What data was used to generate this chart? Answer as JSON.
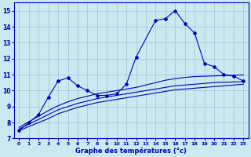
{
  "xlabel": "Graphe des températures (°c)",
  "background_color": "#cce8f0",
  "grid_color": "#99c4d8",
  "line_color": "#0000bb",
  "xlim": [
    -0.5,
    23.5
  ],
  "ylim": [
    7,
    15.5
  ],
  "xticks": [
    0,
    1,
    2,
    3,
    4,
    5,
    6,
    7,
    8,
    9,
    10,
    11,
    12,
    13,
    14,
    15,
    16,
    17,
    18,
    19,
    20,
    21,
    22,
    23
  ],
  "yticks": [
    7,
    8,
    9,
    10,
    11,
    12,
    13,
    14,
    15
  ],
  "series1_x": [
    0,
    1,
    2,
    3,
    4,
    5,
    6,
    7,
    8,
    9,
    10,
    11,
    12,
    14,
    15,
    16,
    17,
    18,
    19,
    20,
    21,
    22,
    23
  ],
  "series1_y": [
    7.5,
    8.0,
    8.5,
    9.6,
    10.6,
    10.8,
    10.3,
    10.0,
    9.7,
    9.7,
    9.8,
    10.4,
    12.1,
    14.4,
    14.5,
    15.0,
    14.2,
    13.6,
    11.7,
    11.5,
    11.0,
    10.9,
    10.6
  ],
  "series2_x": [
    0,
    1,
    2,
    3,
    4,
    5,
    6,
    7,
    8,
    9,
    10,
    11,
    12,
    13,
    14,
    15,
    16,
    17,
    18,
    19,
    20,
    21,
    22,
    23
  ],
  "series2_y": [
    7.5,
    7.75,
    8.0,
    8.25,
    8.55,
    8.75,
    8.95,
    9.1,
    9.25,
    9.35,
    9.45,
    9.55,
    9.65,
    9.75,
    9.85,
    9.95,
    10.05,
    10.1,
    10.15,
    10.2,
    10.25,
    10.3,
    10.35,
    10.4
  ],
  "series3_x": [
    0,
    1,
    2,
    3,
    4,
    5,
    6,
    7,
    8,
    9,
    10,
    11,
    12,
    13,
    14,
    15,
    16,
    17,
    18,
    19,
    20,
    21,
    22,
    23
  ],
  "series3_y": [
    7.6,
    7.9,
    8.2,
    8.5,
    8.8,
    9.0,
    9.2,
    9.35,
    9.5,
    9.6,
    9.7,
    9.8,
    9.9,
    10.0,
    10.1,
    10.2,
    10.3,
    10.35,
    10.4,
    10.45,
    10.5,
    10.52,
    10.54,
    10.56
  ],
  "series4_x": [
    0,
    1,
    2,
    3,
    4,
    5,
    6,
    7,
    8,
    9,
    10,
    11,
    12,
    13,
    14,
    15,
    16,
    17,
    18,
    19,
    20,
    21,
    22,
    23
  ],
  "series4_y": [
    7.7,
    8.05,
    8.4,
    8.75,
    9.05,
    9.3,
    9.5,
    9.65,
    9.8,
    9.9,
    10.0,
    10.1,
    10.2,
    10.35,
    10.5,
    10.65,
    10.75,
    10.82,
    10.88,
    10.9,
    10.92,
    10.94,
    10.96,
    10.98
  ]
}
